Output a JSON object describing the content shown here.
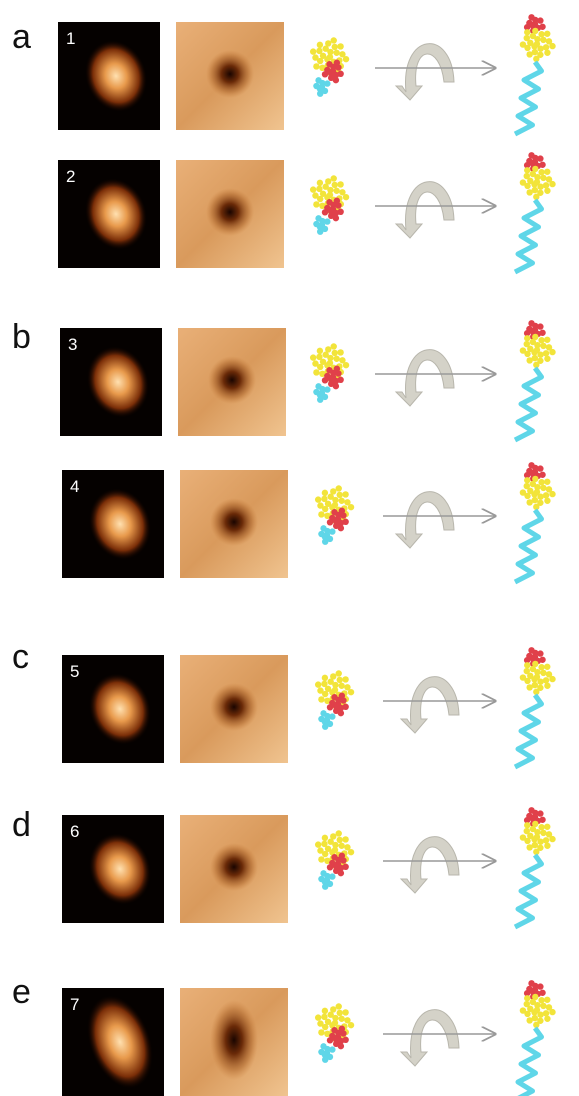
{
  "panels": [
    {
      "label": "a",
      "rows": [
        {
          "number": "1"
        },
        {
          "number": "2"
        }
      ]
    },
    {
      "label": "b",
      "rows": [
        {
          "number": "3"
        },
        {
          "number": "4"
        }
      ]
    },
    {
      "label": "c",
      "rows": [
        {
          "number": "5"
        }
      ]
    },
    {
      "label": "d",
      "rows": [
        {
          "number": "6"
        }
      ]
    },
    {
      "label": "e",
      "rows": [
        {
          "number": "7"
        }
      ]
    }
  ]
}
